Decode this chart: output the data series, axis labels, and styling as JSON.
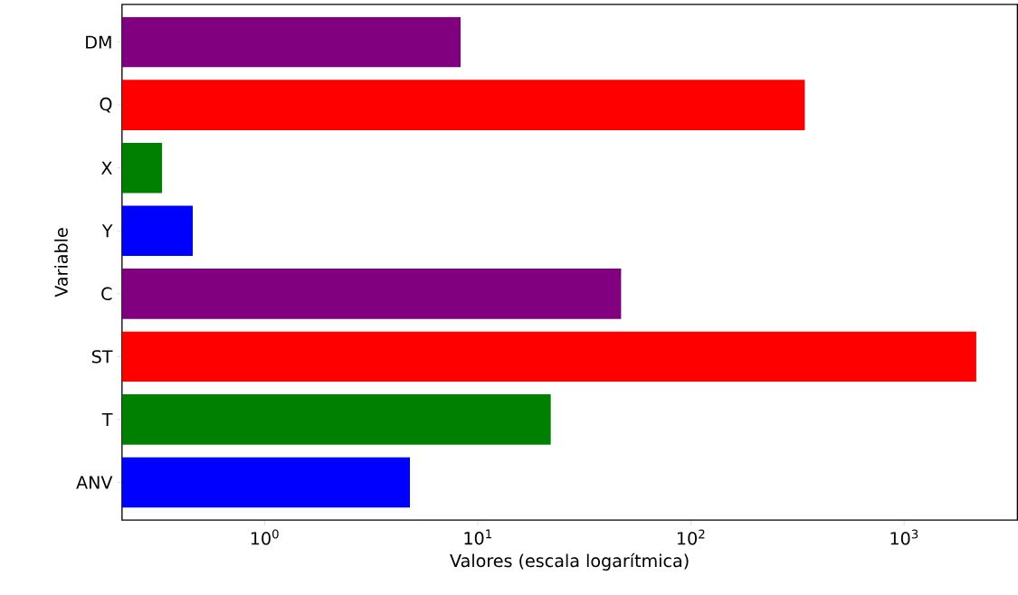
{
  "chart_data": {
    "type": "bar",
    "orientation": "horizontal",
    "log": "x",
    "xlabel": "Valores (escala logarítmica)",
    "ylabel": "Variable",
    "categories": [
      "DM",
      "Q",
      "X",
      "Y",
      "C",
      "ST",
      "T",
      "ANV"
    ],
    "values": [
      8.3,
      342,
      0.33,
      0.46,
      47,
      2180,
      22,
      4.8
    ],
    "colors": [
      "#800080",
      "#ff0000",
      "#008000",
      "#0000ff",
      "#800080",
      "#ff0000",
      "#008000",
      "#0000ff"
    ],
    "xlim": [
      0.214,
      3400
    ],
    "xticks": [
      {
        "value": 1,
        "label": "10$^{0}$"
      },
      {
        "value": 10,
        "label": "10$^{1}$"
      },
      {
        "value": 100,
        "label": "10$^{2}$"
      },
      {
        "value": 1000,
        "label": "10$^{3}$"
      }
    ],
    "grid": false
  }
}
